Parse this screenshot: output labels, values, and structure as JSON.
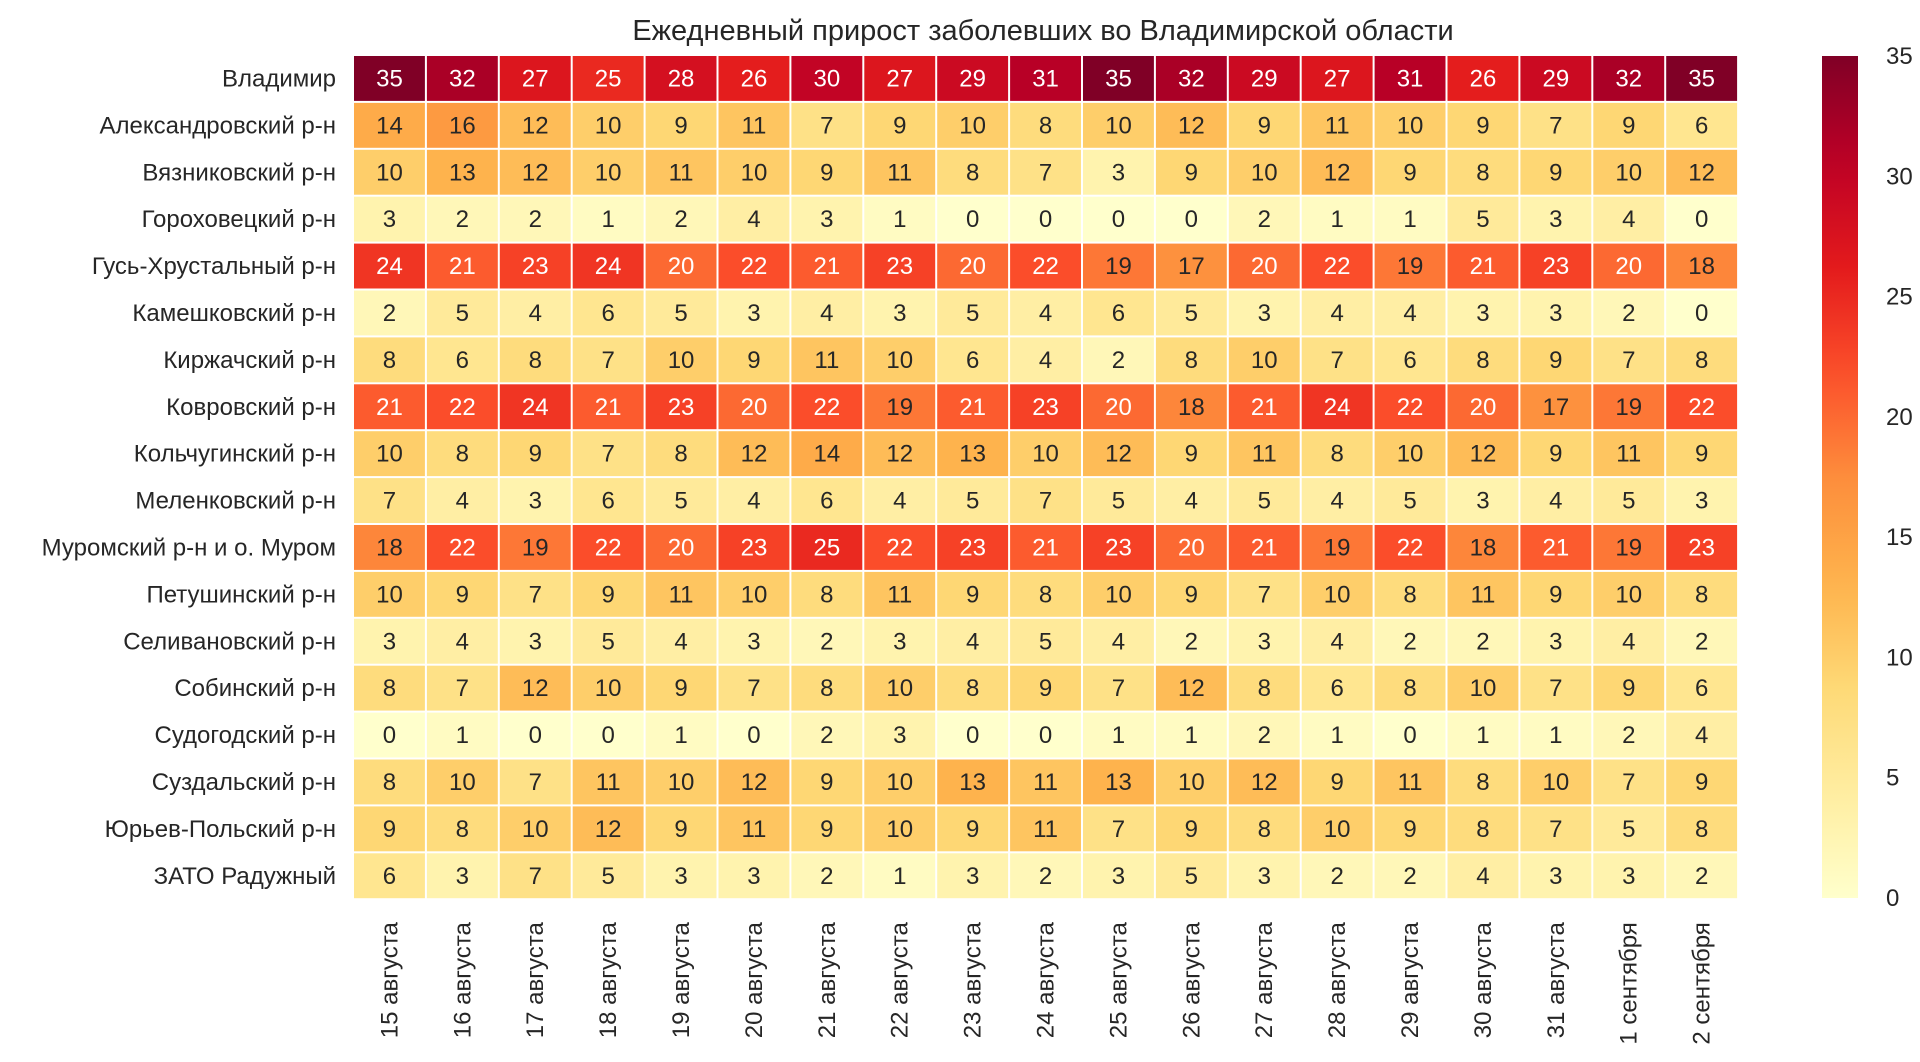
{
  "chart_data": {
    "type": "heatmap",
    "title": "Ежедневный прирост заболевших во Владимирской области",
    "xlabel": "",
    "ylabel": "",
    "columns": [
      "15 августа",
      "16 августа",
      "17 августа",
      "18 августа",
      "19 августа",
      "20 августа",
      "21 августа",
      "22 августа",
      "23 августа",
      "24 августа",
      "25 августа",
      "26 августа",
      "27 августа",
      "28 августа",
      "29 августа",
      "30 августа",
      "31 августа",
      "1 сентября",
      "2 сентября"
    ],
    "rows": [
      "Владимир",
      "Александровский р-н",
      "Вязниковский р-н",
      "Гороховецкий р-н",
      "Гусь-Хрустальный р-н",
      "Камешковский р-н",
      "Киржачский р-н",
      "Ковровский р-н",
      "Кольчугинский р-н",
      "Меленковский р-н",
      "Муромский р-н и о. Муром",
      "Петушинский р-н",
      "Селивановский р-н",
      "Собинский р-н",
      "Судогодский р-н",
      "Суздальский р-н",
      "Юрьев-Польский р-н",
      "ЗАТО Радужный"
    ],
    "values": [
      [
        35,
        32,
        27,
        25,
        28,
        26,
        30,
        27,
        29,
        31,
        35,
        32,
        29,
        27,
        31,
        26,
        29,
        32,
        35
      ],
      [
        14,
        16,
        12,
        10,
        9,
        11,
        7,
        9,
        10,
        8,
        10,
        12,
        9,
        11,
        10,
        9,
        7,
        9,
        6
      ],
      [
        10,
        13,
        12,
        10,
        11,
        10,
        9,
        11,
        8,
        7,
        3,
        9,
        10,
        12,
        9,
        8,
        9,
        10,
        12
      ],
      [
        3,
        2,
        2,
        1,
        2,
        4,
        3,
        1,
        0,
        0,
        0,
        0,
        2,
        1,
        1,
        5,
        3,
        4,
        0
      ],
      [
        24,
        21,
        23,
        24,
        20,
        22,
        21,
        23,
        20,
        22,
        19,
        17,
        20,
        22,
        19,
        21,
        23,
        20,
        18
      ],
      [
        2,
        5,
        4,
        6,
        5,
        3,
        4,
        3,
        5,
        4,
        6,
        5,
        3,
        4,
        4,
        3,
        3,
        2,
        0
      ],
      [
        8,
        6,
        8,
        7,
        10,
        9,
        11,
        10,
        6,
        4,
        2,
        8,
        10,
        7,
        6,
        8,
        9,
        7,
        8
      ],
      [
        21,
        22,
        24,
        21,
        23,
        20,
        22,
        19,
        21,
        23,
        20,
        18,
        21,
        24,
        22,
        20,
        17,
        19,
        22
      ],
      [
        10,
        8,
        9,
        7,
        8,
        12,
        14,
        12,
        13,
        10,
        12,
        9,
        11,
        8,
        10,
        12,
        9,
        11,
        9
      ],
      [
        7,
        4,
        3,
        6,
        5,
        4,
        6,
        4,
        5,
        7,
        5,
        4,
        5,
        4,
        5,
        3,
        4,
        5,
        3
      ],
      [
        18,
        22,
        19,
        22,
        20,
        23,
        25,
        22,
        23,
        21,
        23,
        20,
        21,
        19,
        22,
        18,
        21,
        19,
        23
      ],
      [
        10,
        9,
        7,
        9,
        11,
        10,
        8,
        11,
        9,
        8,
        10,
        9,
        7,
        10,
        8,
        11,
        9,
        10,
        8
      ],
      [
        3,
        4,
        3,
        5,
        4,
        3,
        2,
        3,
        4,
        5,
        4,
        2,
        3,
        4,
        2,
        2,
        3,
        4,
        2
      ],
      [
        8,
        7,
        12,
        10,
        9,
        7,
        8,
        10,
        8,
        9,
        7,
        12,
        8,
        6,
        8,
        10,
        7,
        9,
        6
      ],
      [
        0,
        1,
        0,
        0,
        1,
        0,
        2,
        3,
        0,
        0,
        1,
        1,
        2,
        1,
        0,
        1,
        1,
        2,
        4
      ],
      [
        8,
        10,
        7,
        11,
        10,
        12,
        9,
        10,
        13,
        11,
        13,
        10,
        12,
        9,
        11,
        8,
        10,
        7,
        9
      ],
      [
        9,
        8,
        10,
        12,
        9,
        11,
        9,
        10,
        9,
        11,
        7,
        9,
        8,
        10,
        9,
        8,
        7,
        5,
        8
      ],
      [
        6,
        3,
        7,
        5,
        3,
        3,
        2,
        1,
        3,
        2,
        3,
        5,
        3,
        2,
        2,
        4,
        3,
        3,
        2
      ]
    ],
    "vmin": 0,
    "vmax": 35,
    "colormap": "YlOrRd",
    "colorbar_ticks": [
      0,
      5,
      10,
      15,
      20,
      25,
      30,
      35
    ],
    "annotations": true
  }
}
